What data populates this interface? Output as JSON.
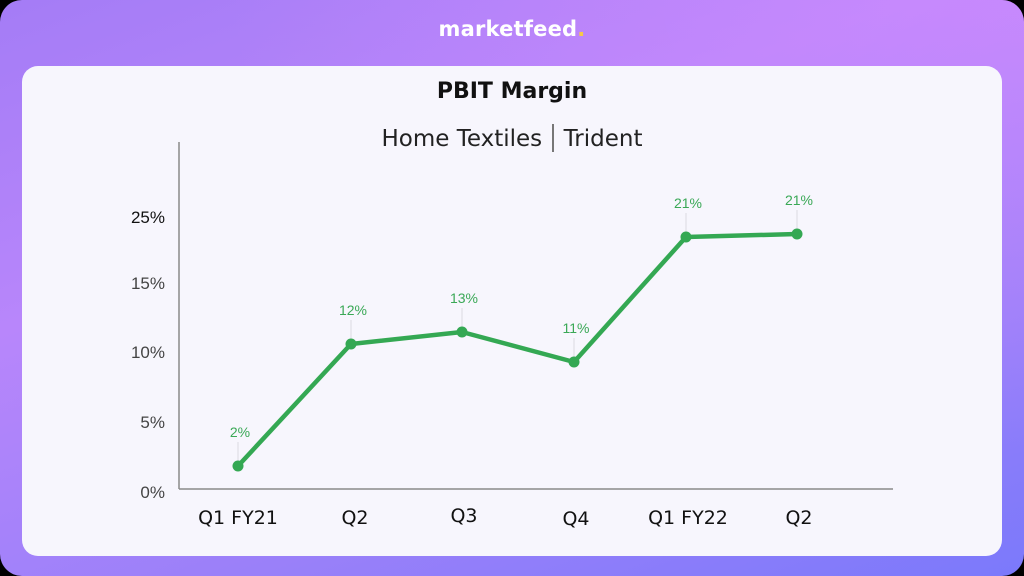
{
  "brand": {
    "name": "marketfeed",
    "dot": "."
  },
  "header": {
    "title": "PBIT Margin",
    "subtitle_left": "Home Textiles",
    "subtitle_right": "Trident"
  },
  "colors": {
    "line": "#34a853",
    "data_label": "#3aa856",
    "brand_dot": "#f7c948",
    "card_bg": "#f7f6fd"
  },
  "chart_data": {
    "type": "line",
    "title": "PBIT Margin",
    "subtitle": "Home Textiles | Trident",
    "xlabel": "",
    "ylabel": "",
    "categories": [
      "Q1 FY21",
      "Q2",
      "Q3",
      "Q4",
      "Q1 FY22",
      "Q2"
    ],
    "series": [
      {
        "name": "PBIT Margin",
        "values": [
          2,
          12,
          13,
          11,
          21,
          21
        ],
        "labels": [
          "2%",
          "12%",
          "13%",
          "11%",
          "21%",
          "21%"
        ]
      }
    ],
    "yticks": [
      "0%",
      "5%",
      "10%",
      "15%",
      "25%"
    ],
    "ylim": [
      0,
      25
    ],
    "grid": false,
    "legend": "none"
  }
}
